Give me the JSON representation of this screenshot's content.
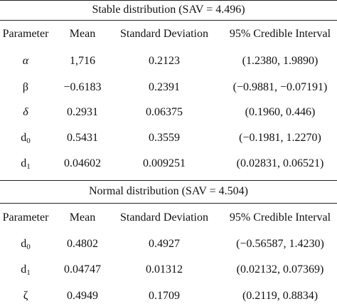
{
  "sections": [
    {
      "title": "Stable distribution (SAV = 4.496)",
      "headers": [
        "Parameter",
        "Mean",
        "Standard Deviation",
        "95% Credible Interval"
      ],
      "rows": [
        {
          "param": "α",
          "sub": "",
          "mean": "1,716",
          "sd": "0.2123",
          "ci": "(1.2380, 1.9890)"
        },
        {
          "param": "β",
          "sub": "",
          "mean": "−0.6183",
          "sd": "0.2391",
          "ci": "(−0.9881, −0.07191)"
        },
        {
          "param": "δ",
          "sub": "",
          "mean": "0.2931",
          "sd": "0.06375",
          "ci": "(0.1960, 0.446)"
        },
        {
          "param": "d",
          "sub": "0",
          "mean": "0.5431",
          "sd": "0.3559",
          "ci": "(−0.1981, 1.2270)"
        },
        {
          "param": "d",
          "sub": "1",
          "mean": "0.04602",
          "sd": "0.009251",
          "ci": "(0.02831, 0.06521)"
        }
      ]
    },
    {
      "title": "Normal distribution (SAV = 4.504)",
      "headers": [
        "Parameter",
        "Mean",
        "Standard Deviation",
        "95% Credible Interval"
      ],
      "rows": [
        {
          "param": "d",
          "sub": "0",
          "mean": "0.4802",
          "sd": "0.4927",
          "ci": "(−0.56587, 1.4230)"
        },
        {
          "param": "d",
          "sub": "1",
          "mean": "0.04747",
          "sd": "0.01312",
          "ci": "(0.02132, 0.07369)"
        },
        {
          "param": "ζ",
          "sub": "",
          "mean": "0.4949",
          "sd": "0.1709",
          "ci": "(0.2119, 0.8834)"
        }
      ]
    }
  ]
}
